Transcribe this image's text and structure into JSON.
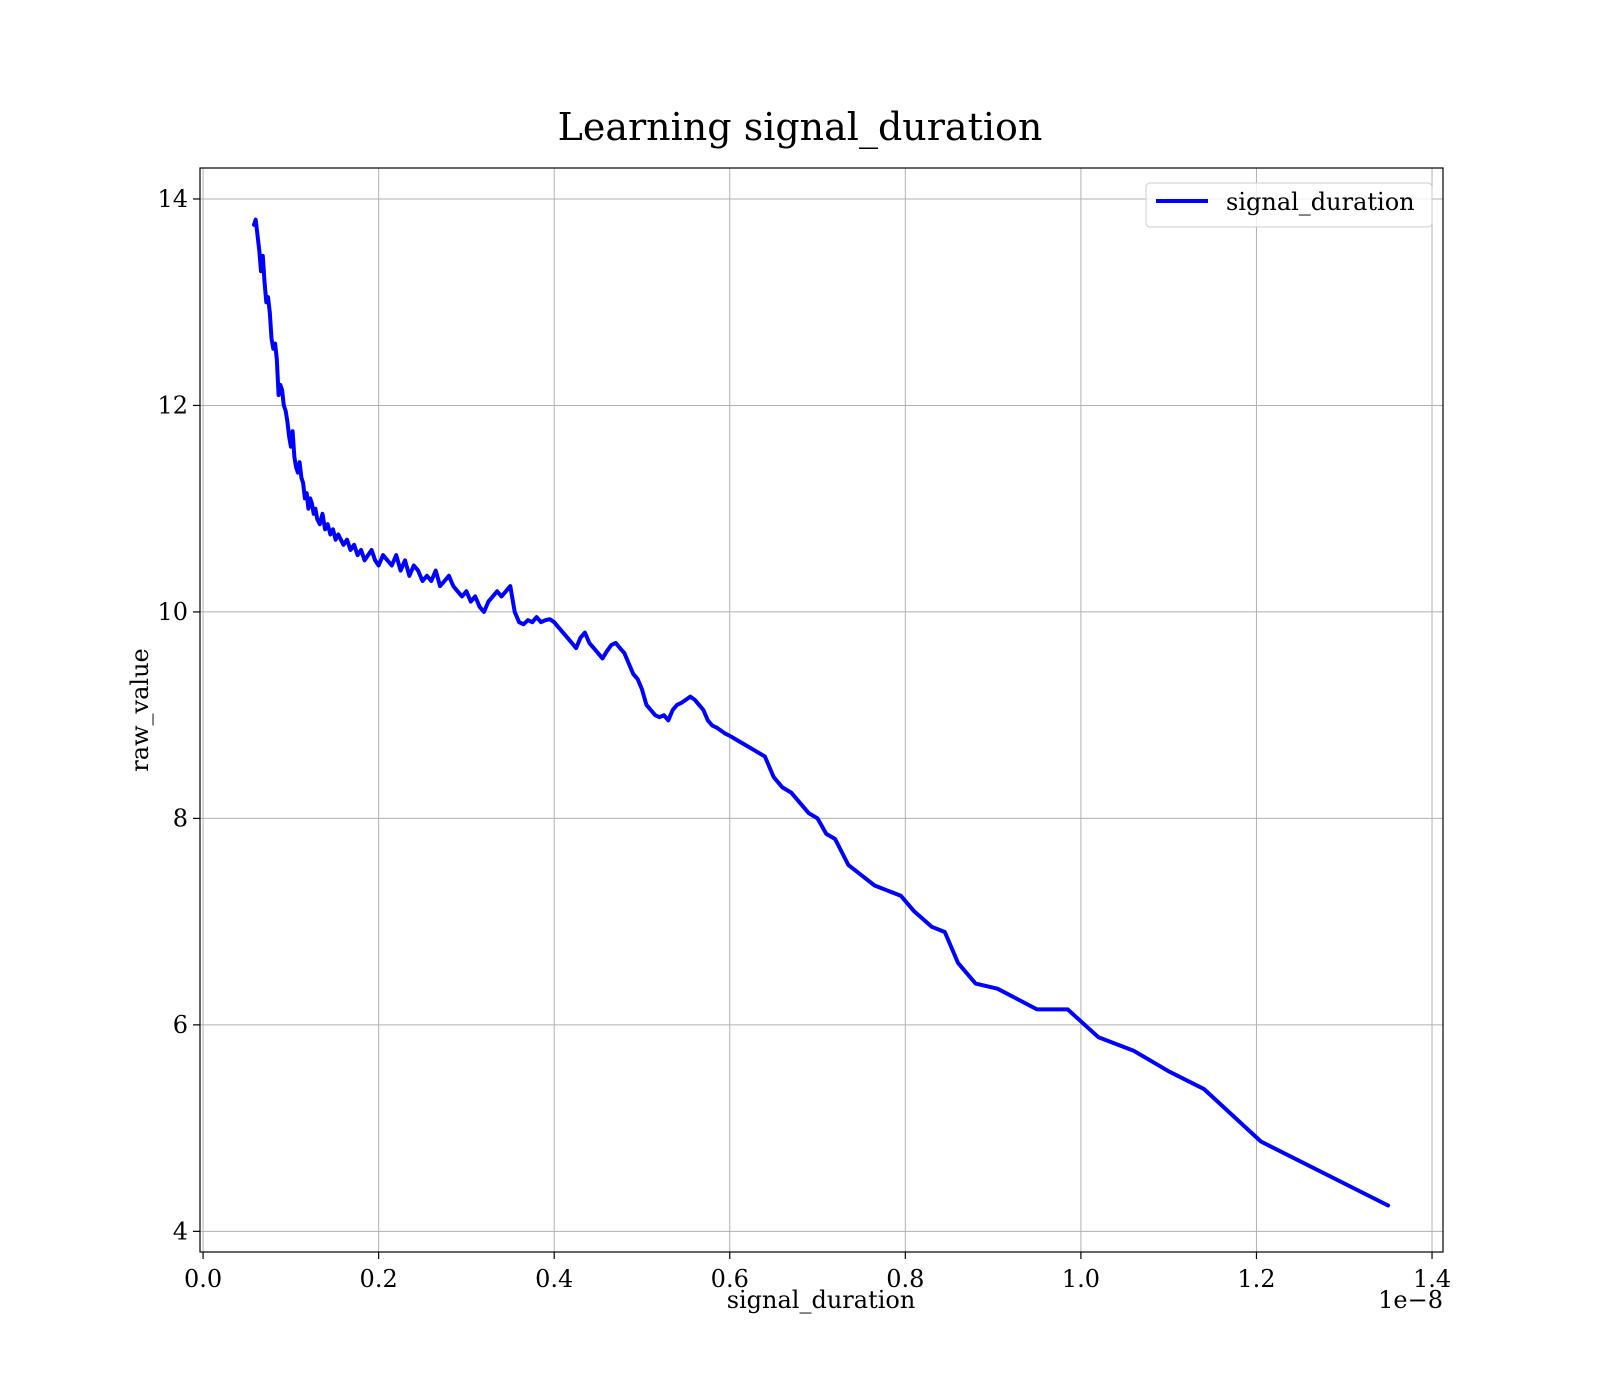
{
  "chart_data": {
    "type": "line",
    "title": "Learning signal_duration",
    "xlabel": "signal_duration",
    "ylabel": "raw_value",
    "x_offset_text": "1e−8",
    "x_scale_factor": 1e-08,
    "xlim": [
      -0.0035,
      1.4125
    ],
    "ylim": [
      3.8,
      14.3
    ],
    "xticks": [
      0.0,
      0.2,
      0.4,
      0.6,
      0.8,
      1.0,
      1.2,
      1.4
    ],
    "xtick_labels": [
      "0.0",
      "0.2",
      "0.4",
      "0.6",
      "0.8",
      "1.0",
      "1.2",
      "1.4"
    ],
    "yticks": [
      4,
      6,
      8,
      10,
      12,
      14
    ],
    "ytick_labels": [
      "4",
      "6",
      "8",
      "10",
      "12",
      "14"
    ],
    "grid": true,
    "legend_position": "top-right",
    "series": [
      {
        "name": "signal_duration",
        "color": "#0000ff",
        "x": [
          0.058,
          0.06,
          0.062,
          0.064,
          0.066,
          0.068,
          0.07,
          0.072,
          0.074,
          0.076,
          0.078,
          0.08,
          0.082,
          0.084,
          0.086,
          0.088,
          0.09,
          0.092,
          0.094,
          0.096,
          0.098,
          0.1,
          0.102,
          0.104,
          0.106,
          0.108,
          0.11,
          0.112,
          0.114,
          0.116,
          0.118,
          0.12,
          0.122,
          0.124,
          0.126,
          0.128,
          0.13,
          0.133,
          0.136,
          0.139,
          0.142,
          0.145,
          0.148,
          0.151,
          0.154,
          0.157,
          0.16,
          0.164,
          0.168,
          0.172,
          0.176,
          0.18,
          0.184,
          0.188,
          0.192,
          0.196,
          0.2,
          0.205,
          0.21,
          0.215,
          0.22,
          0.225,
          0.23,
          0.235,
          0.24,
          0.245,
          0.25,
          0.255,
          0.26,
          0.265,
          0.27,
          0.275,
          0.28,
          0.285,
          0.29,
          0.295,
          0.3,
          0.305,
          0.31,
          0.315,
          0.32,
          0.325,
          0.33,
          0.335,
          0.34,
          0.345,
          0.35,
          0.355,
          0.36,
          0.365,
          0.37,
          0.375,
          0.38,
          0.385,
          0.39,
          0.395,
          0.4,
          0.405,
          0.41,
          0.415,
          0.42,
          0.425,
          0.43,
          0.435,
          0.44,
          0.445,
          0.45,
          0.455,
          0.46,
          0.465,
          0.47,
          0.475,
          0.48,
          0.485,
          0.49,
          0.495,
          0.5,
          0.505,
          0.51,
          0.515,
          0.52,
          0.525,
          0.53,
          0.535,
          0.54,
          0.545,
          0.55,
          0.555,
          0.56,
          0.565,
          0.57,
          0.575,
          0.58,
          0.585,
          0.59,
          0.595,
          0.6,
          0.61,
          0.62,
          0.63,
          0.64,
          0.65,
          0.66,
          0.67,
          0.68,
          0.69,
          0.7,
          0.71,
          0.72,
          0.735,
          0.75,
          0.765,
          0.78,
          0.795,
          0.81,
          0.83,
          0.845,
          0.86,
          0.88,
          0.905,
          0.95,
          0.985,
          1.02,
          1.06,
          1.1,
          1.14,
          1.205,
          1.35
        ],
        "values": [
          13.75,
          13.8,
          13.65,
          13.5,
          13.3,
          13.45,
          13.2,
          13.0,
          13.05,
          12.9,
          12.65,
          12.55,
          12.6,
          12.45,
          12.1,
          12.2,
          12.15,
          12.0,
          11.95,
          11.85,
          11.7,
          11.6,
          11.75,
          11.5,
          11.4,
          11.35,
          11.45,
          11.3,
          11.25,
          11.1,
          11.15,
          11.0,
          11.1,
          11.05,
          10.95,
          11.0,
          10.9,
          10.85,
          10.95,
          10.8,
          10.85,
          10.75,
          10.8,
          10.7,
          10.75,
          10.7,
          10.65,
          10.7,
          10.6,
          10.65,
          10.55,
          10.6,
          10.5,
          10.55,
          10.6,
          10.5,
          10.45,
          10.55,
          10.5,
          10.45,
          10.55,
          10.4,
          10.5,
          10.35,
          10.45,
          10.4,
          10.3,
          10.35,
          10.3,
          10.4,
          10.25,
          10.3,
          10.35,
          10.25,
          10.2,
          10.15,
          10.2,
          10.1,
          10.15,
          10.05,
          10.0,
          10.1,
          10.15,
          10.2,
          10.15,
          10.2,
          10.25,
          10.0,
          9.9,
          9.88,
          9.92,
          9.9,
          9.95,
          9.9,
          9.92,
          9.93,
          9.9,
          9.85,
          9.8,
          9.75,
          9.7,
          9.65,
          9.75,
          9.8,
          9.7,
          9.65,
          9.6,
          9.55,
          9.62,
          9.68,
          9.7,
          9.65,
          9.6,
          9.5,
          9.4,
          9.35,
          9.25,
          9.1,
          9.05,
          9.0,
          8.98,
          9.0,
          8.95,
          9.05,
          9.1,
          9.12,
          9.15,
          9.18,
          9.15,
          9.1,
          9.05,
          8.95,
          8.9,
          8.88,
          8.85,
          8.82,
          8.8,
          8.75,
          8.7,
          8.65,
          8.6,
          8.4,
          8.3,
          8.25,
          8.15,
          8.05,
          8.0,
          7.85,
          7.8,
          7.55,
          7.45,
          7.35,
          7.3,
          7.25,
          7.1,
          6.95,
          6.9,
          6.6,
          6.4,
          6.35,
          6.15,
          6.15,
          5.88,
          5.75,
          5.55,
          5.38,
          4.87,
          4.25
        ]
      }
    ]
  }
}
